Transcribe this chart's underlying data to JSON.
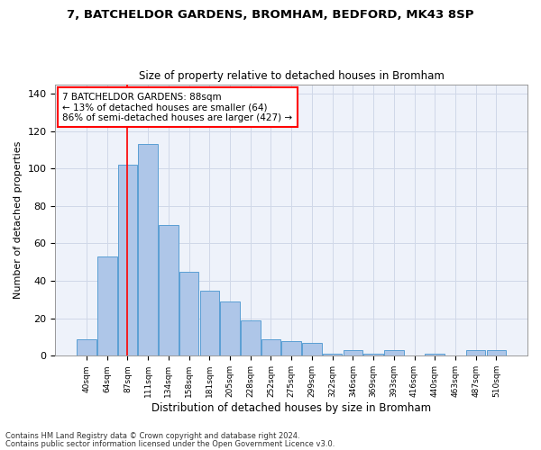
{
  "title1": "7, BATCHELDOR GARDENS, BROMHAM, BEDFORD, MK43 8SP",
  "title2": "Size of property relative to detached houses in Bromham",
  "xlabel": "Distribution of detached houses by size in Bromham",
  "ylabel": "Number of detached properties",
  "bar_labels": [
    "40sqm",
    "64sqm",
    "87sqm",
    "111sqm",
    "134sqm",
    "158sqm",
    "181sqm",
    "205sqm",
    "228sqm",
    "252sqm",
    "275sqm",
    "299sqm",
    "322sqm",
    "346sqm",
    "369sqm",
    "393sqm",
    "416sqm",
    "440sqm",
    "463sqm",
    "487sqm",
    "510sqm"
  ],
  "bar_values": [
    9,
    53,
    102,
    113,
    70,
    45,
    35,
    29,
    19,
    9,
    8,
    7,
    1,
    3,
    1,
    3,
    0,
    1,
    0,
    3,
    3
  ],
  "bar_color": "#aec6e8",
  "bar_edge_color": "#5a9fd4",
  "grid_color": "#d0d8e8",
  "background_color": "#eef2fa",
  "annotation_line1": "7 BATCHELDOR GARDENS: 88sqm",
  "annotation_line2": "← 13% of detached houses are smaller (64)",
  "annotation_line3": "86% of semi-detached houses are larger (427) →",
  "redline_x": 2.0,
  "ylim": [
    0,
    145
  ],
  "yticks": [
    0,
    20,
    40,
    60,
    80,
    100,
    120,
    140
  ],
  "footnote1": "Contains HM Land Registry data © Crown copyright and database right 2024.",
  "footnote2": "Contains public sector information licensed under the Open Government Licence v3.0."
}
